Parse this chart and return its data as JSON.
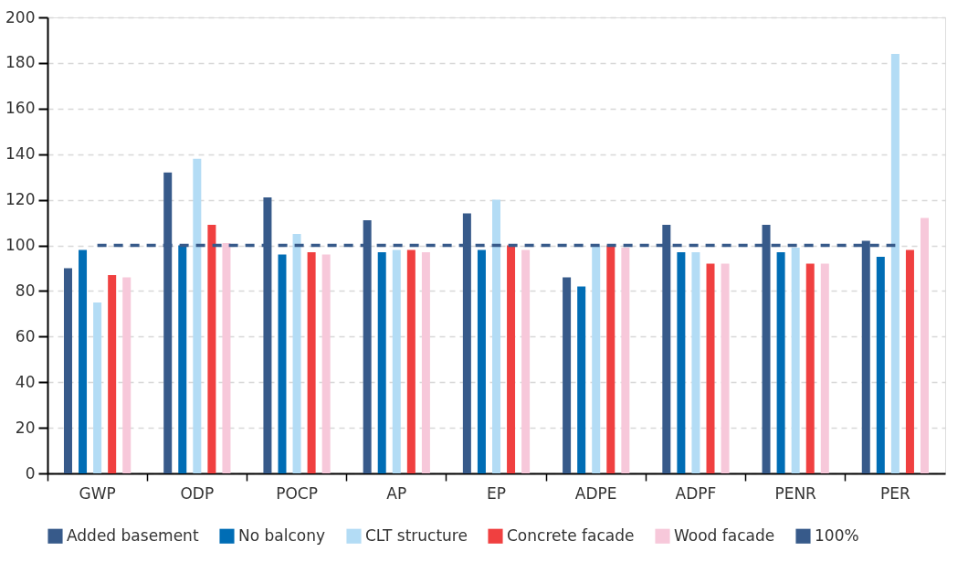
{
  "chart_data": {
    "type": "bar",
    "categories": [
      "GWP",
      "ODP",
      "POCP",
      "AP",
      "EP",
      "ADPE",
      "ADPF",
      "PENR",
      "PER"
    ],
    "ylim": [
      0,
      200
    ],
    "yticks": [
      0,
      20,
      40,
      60,
      80,
      100,
      120,
      140,
      160,
      180,
      200
    ],
    "grid": "y",
    "legend": "bottom",
    "series": [
      {
        "name": "Added basement",
        "color": "#375a8a",
        "values": [
          90,
          132,
          121,
          111,
          114,
          86,
          109,
          109,
          102
        ]
      },
      {
        "name": "No balcony",
        "color": "#006db5",
        "values": [
          98,
          100,
          96,
          97,
          98,
          82,
          97,
          97,
          95
        ]
      },
      {
        "name": "CLT structure",
        "color": "#b3dcf5",
        "values": [
          75,
          138,
          105,
          98,
          120,
          100,
          97,
          99,
          184
        ]
      },
      {
        "name": "Concrete facade",
        "color": "#f04040",
        "values": [
          87,
          109,
          97,
          98,
          100,
          100,
          92,
          92,
          98
        ]
      },
      {
        "name": "Wood facade",
        "color": "#f7c8da",
        "values": [
          86,
          101,
          96,
          97,
          98,
          99,
          92,
          92,
          112
        ]
      },
      {
        "name": "100%",
        "color": "#375a8a",
        "type": "line",
        "line_style": "dashed",
        "values": [
          100,
          100,
          100,
          100,
          100,
          100,
          100,
          100,
          100
        ]
      }
    ]
  }
}
